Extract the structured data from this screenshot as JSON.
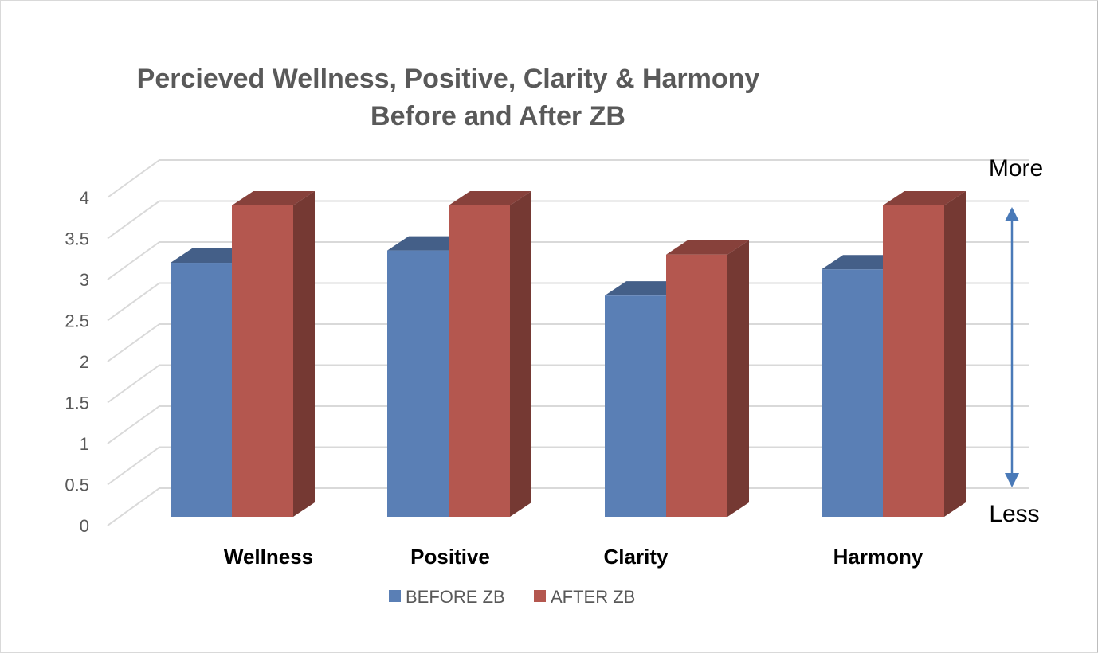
{
  "chart_data": {
    "type": "bar",
    "title_line1": "Percieved Wellness, Positive, Clarity & Harmony",
    "title_line2": "Before and After ZB",
    "categories": [
      "Wellness",
      "Positive",
      "Clarity",
      "Harmony"
    ],
    "series": [
      {
        "name": "BEFORE ZB",
        "color": "#5a7fb5",
        "values": [
          3.1,
          3.25,
          2.7,
          3.02
        ]
      },
      {
        "name": "AFTER ZB",
        "color": "#b4574f",
        "values": [
          3.8,
          3.8,
          3.2,
          3.8
        ]
      }
    ],
    "ylim": [
      0,
      4
    ],
    "yticks": [
      "0",
      "0.5",
      "1",
      "1.5",
      "2",
      "2.5",
      "3",
      "3.5",
      "4"
    ],
    "grid": true,
    "legend_position": "bottom",
    "annotations": {
      "top": "More",
      "bottom": "Less",
      "arrow_color": "#4a7ab8"
    }
  }
}
